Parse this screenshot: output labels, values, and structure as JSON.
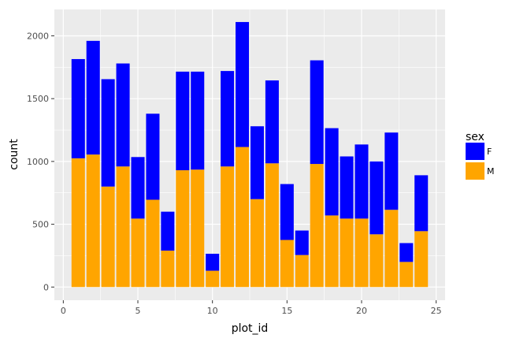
{
  "chart_data": {
    "type": "bar",
    "stacked": true,
    "xlabel": "plot_id",
    "ylabel": "count",
    "xlim": [
      -0.6,
      25.6
    ],
    "ylim": [
      -105,
      2210
    ],
    "xticks": [
      0,
      5,
      10,
      15,
      20,
      25
    ],
    "yticks": [
      0,
      500,
      1000,
      1500,
      2000
    ],
    "x": [
      1,
      2,
      3,
      4,
      5,
      6,
      7,
      8,
      9,
      10,
      11,
      12,
      13,
      14,
      15,
      16,
      17,
      18,
      19,
      20,
      21,
      22,
      23,
      24
    ],
    "series": [
      {
        "name": "M",
        "color": "#FFA500",
        "values": [
          1025,
          1055,
          800,
          960,
          545,
          695,
          290,
          930,
          935,
          130,
          960,
          1115,
          700,
          985,
          375,
          255,
          980,
          570,
          545,
          545,
          420,
          615,
          200,
          445
        ]
      },
      {
        "name": "F",
        "color": "#0000FF",
        "values": [
          790,
          905,
          855,
          820,
          490,
          685,
          310,
          785,
          780,
          135,
          760,
          995,
          580,
          660,
          445,
          195,
          825,
          695,
          495,
          590,
          580,
          615,
          150,
          445
        ]
      }
    ],
    "legend": {
      "title": "sex",
      "placement": "right",
      "entries": [
        {
          "label": "F",
          "color": "#0000FF"
        },
        {
          "label": "M",
          "color": "#FFA500"
        }
      ]
    },
    "grid": true
  }
}
